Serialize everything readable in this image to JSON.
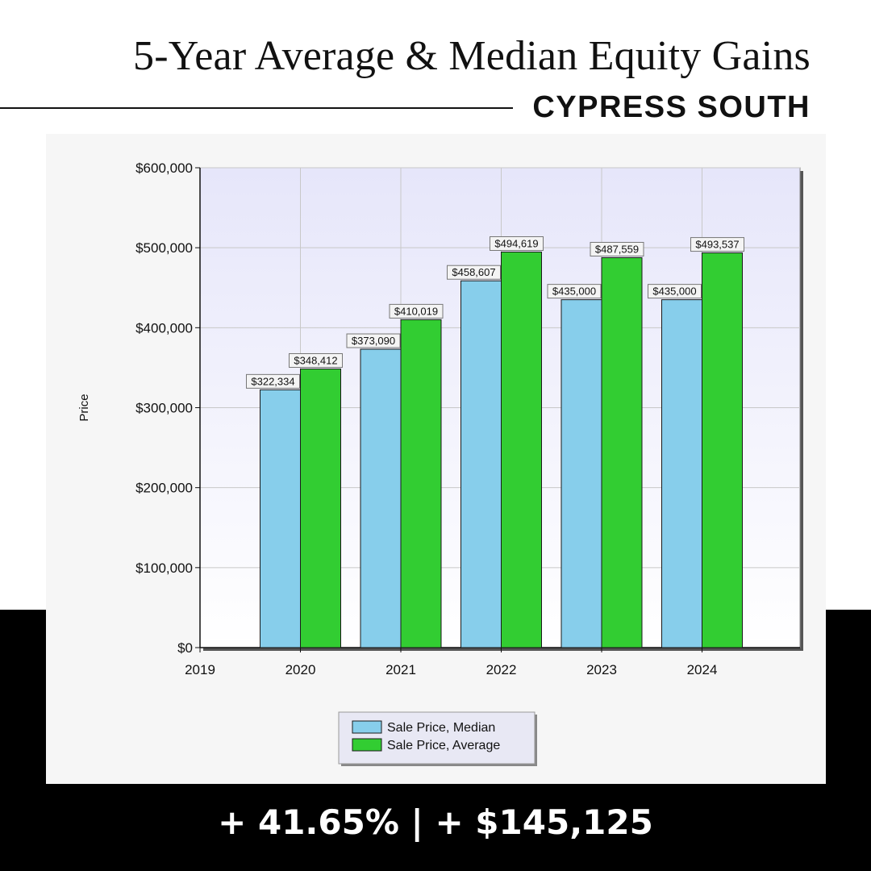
{
  "header": {
    "title": "5-Year Average & Median Equity Gains",
    "subtitle": "CYPRESS SOUTH"
  },
  "footer": {
    "summary": "+ 41.65%  |  + $145,125"
  },
  "colors": {
    "median": "#87ceeb",
    "average": "#32cd32",
    "background": "#ffffff",
    "band": "#000000"
  },
  "chart_data": {
    "type": "bar",
    "x_ticks": [
      "2019",
      "2020",
      "2021",
      "2022",
      "2023",
      "2024"
    ],
    "categories": [
      "2020",
      "2021",
      "2022",
      "2023",
      "2024"
    ],
    "series": [
      {
        "name": "Sale Price, Median",
        "values": [
          322334,
          373090,
          458607,
          435000,
          435000
        ],
        "labels": [
          "$322,334",
          "$373,090",
          "$458,607",
          "$435,000",
          "$435,000"
        ]
      },
      {
        "name": "Sale Price, Average",
        "values": [
          348412,
          410019,
          494619,
          487559,
          493537
        ],
        "labels": [
          "$348,412",
          "$410,019",
          "$494,619",
          "$487,559",
          "$493,537"
        ]
      }
    ],
    "ylabel": "Price",
    "ylim": [
      0,
      600000
    ],
    "y_ticks": [
      "$0",
      "$100,000",
      "$200,000",
      "$300,000",
      "$400,000",
      "$500,000",
      "$600,000"
    ],
    "grid": true,
    "legend_position": "bottom-center"
  }
}
